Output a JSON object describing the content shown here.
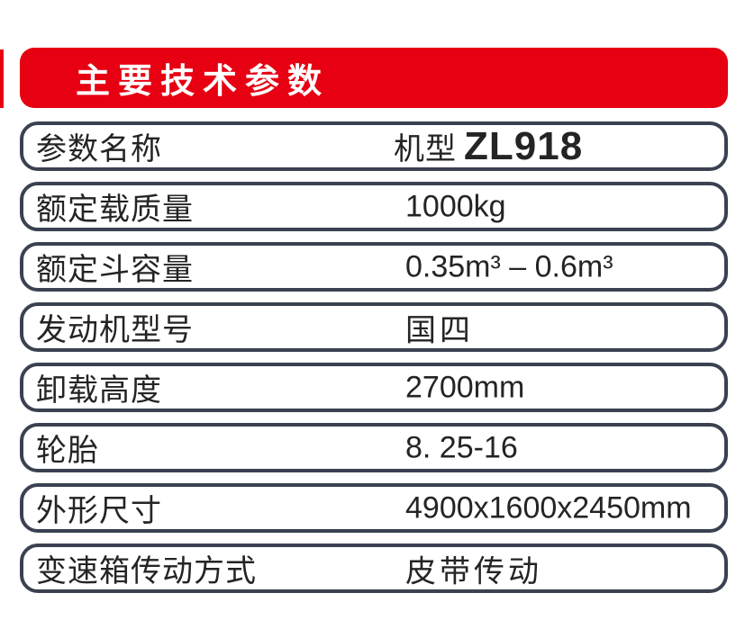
{
  "colors": {
    "accent_red": "#e60012",
    "row_border": "#3a4150",
    "text_dark": "#262324",
    "banner_text": "#ffffff",
    "page_background": "#ffffff"
  },
  "banner": {
    "title": "主要技术参数"
  },
  "table": {
    "rows": [
      {
        "label": "参数名称",
        "value_prefix": "机型",
        "value_bold": "ZL918"
      },
      {
        "label": "额定载质量",
        "value": "1000kg"
      },
      {
        "label": "额定斗容量",
        "value": "0.35m³ – 0.6m³"
      },
      {
        "label": "发动机型号",
        "value": "国四"
      },
      {
        "label": "卸载高度",
        "value": "2700mm"
      },
      {
        "label": "轮胎",
        "value": "8. 25-16"
      },
      {
        "label": "外形尺寸",
        "value": "4900x1600x2450mm"
      },
      {
        "label": "变速箱传动方式",
        "value": "皮带传动"
      }
    ]
  },
  "chart_data": {
    "type": "table",
    "title": "主要技术参数",
    "columns": [
      "参数名称",
      "机型 ZL918"
    ],
    "rows": [
      [
        "额定载质量",
        "1000kg"
      ],
      [
        "额定斗容量",
        "0.35m³ – 0.6m³"
      ],
      [
        "发动机型号",
        "国四"
      ],
      [
        "卸载高度",
        "2700mm"
      ],
      [
        "轮胎",
        "8. 25-16"
      ],
      [
        "外形尺寸",
        "4900x1600x2450mm"
      ],
      [
        "变速箱传动方式",
        "皮带传动"
      ]
    ]
  }
}
